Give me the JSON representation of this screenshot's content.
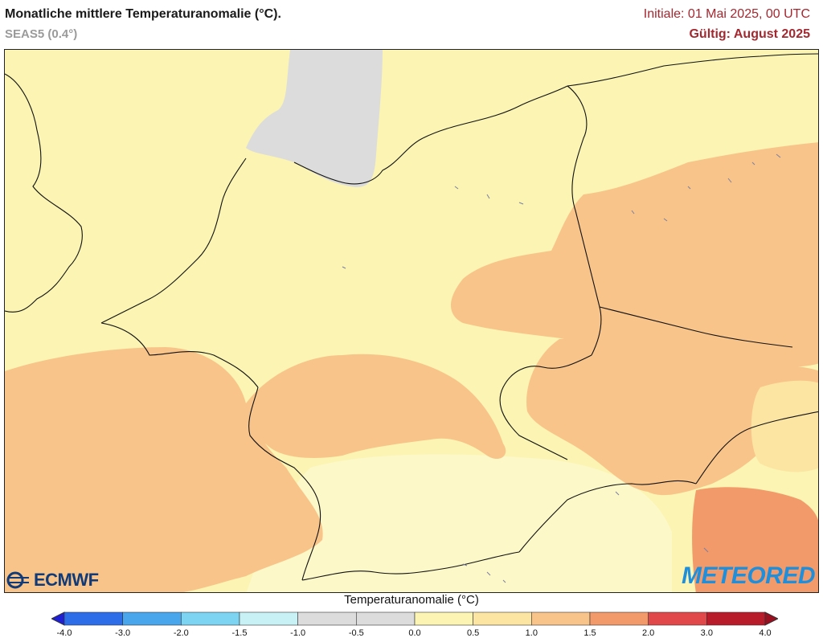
{
  "header": {
    "title": "Monatliche mittlere Temperaturanomalie (°C).",
    "subtitle": "SEAS5 (0.4°)",
    "initial": "Initiale: 01 Mai 2025, 00 UTC",
    "valid": "Gültig: August 2025"
  },
  "logos": {
    "left": "ECMWF",
    "right": "METEORED"
  },
  "colorbar": {
    "title": "Temperaturanomalie (°C)",
    "ticks": [
      "-4.0",
      "-3.0",
      "-2.0",
      "-1.5",
      "-1.0",
      "-0.5",
      "0.0",
      "0.5",
      "1.0",
      "1.5",
      "2.0",
      "3.0",
      "4.0"
    ],
    "colors": [
      "#1f1fd6",
      "#2d6ee8",
      "#49a6ec",
      "#7dd3f2",
      "#c8f1f5",
      "#dcdcdc",
      "#dcdcdc",
      "#fbf4b2",
      "#fce5a2",
      "#f8c48a",
      "#f39a6a",
      "#e0484a",
      "#b81b2a",
      "#9a0f1f"
    ]
  },
  "map_legend_colors": {
    "neutral_gray": "#dcdcdc",
    "anom_0_5_1_0": "#fbf4b2",
    "anom_1_0_1_5": "#fce5a2",
    "anom_1_5_2_0": "#f8c48a",
    "anom_2_0_3_0": "#f39a6a"
  }
}
